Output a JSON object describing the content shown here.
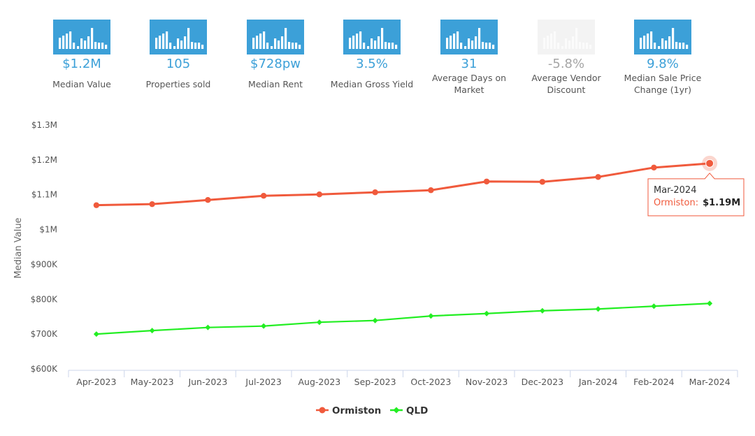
{
  "colors": {
    "accent": "#3ca0d8",
    "muted": "#a5a5a5",
    "ormiston": "#f05a3c",
    "qld": "#22ee22"
  },
  "stats": [
    {
      "icon": "bar-chart-icon",
      "value": "$1.2M",
      "label": "Median Value",
      "active": true
    },
    {
      "icon": "bar-chart-icon",
      "value": "105",
      "label": "Properties sold",
      "active": true
    },
    {
      "icon": "bar-chart-icon",
      "value": "$728pw",
      "label": "Median Rent",
      "active": true
    },
    {
      "icon": "bar-chart-icon",
      "value": "3.5%",
      "label": "Median Gross Yield",
      "active": true
    },
    {
      "icon": "bar-chart-icon",
      "value": "31",
      "label": "Average Days on Market",
      "active": true
    },
    {
      "icon": "bar-chart-icon",
      "value": "-5.8%",
      "label": "Average Vendor Discount",
      "active": false
    },
    {
      "icon": "bar-chart-icon",
      "value": "9.8%",
      "label": "Median Sale Price Change (1yr)",
      "active": true
    }
  ],
  "chart_data": {
    "type": "line",
    "title": "",
    "xlabel": "",
    "ylabel": "Median Value",
    "categories": [
      "Apr-2023",
      "May-2023",
      "Jun-2023",
      "Jul-2023",
      "Aug-2023",
      "Sep-2023",
      "Oct-2023",
      "Nov-2023",
      "Dec-2023",
      "Jan-2024",
      "Feb-2024",
      "Mar-2024"
    ],
    "series": [
      {
        "name": "Ormiston",
        "color": "#f05a3c",
        "marker": "circle",
        "values": [
          1070000,
          1073000,
          1085000,
          1097000,
          1101000,
          1107000,
          1113000,
          1138000,
          1137000,
          1151000,
          1178000,
          1190000
        ]
      },
      {
        "name": "QLD",
        "color": "#22ee22",
        "marker": "diamond",
        "values": [
          700000,
          710000,
          719000,
          723000,
          734000,
          739000,
          752000,
          759000,
          767000,
          772000,
          780000,
          788000
        ]
      }
    ],
    "ylim": [
      600000,
      1300000
    ],
    "yticks": [
      600000,
      700000,
      800000,
      900000,
      1000000,
      1100000,
      1200000,
      1300000
    ],
    "ytick_labels": [
      "$600K",
      "$700K",
      "$800K",
      "$900K",
      "$1M",
      "$1.1M",
      "$1.2M",
      "$1.3M"
    ],
    "legend": {
      "position": "bottom-center",
      "items": [
        "Ormiston",
        "QLD"
      ]
    },
    "tooltip": {
      "date": "Mar-2024",
      "series": "Ormiston",
      "sep": ":",
      "value": "$1.19M",
      "index": 11
    }
  }
}
